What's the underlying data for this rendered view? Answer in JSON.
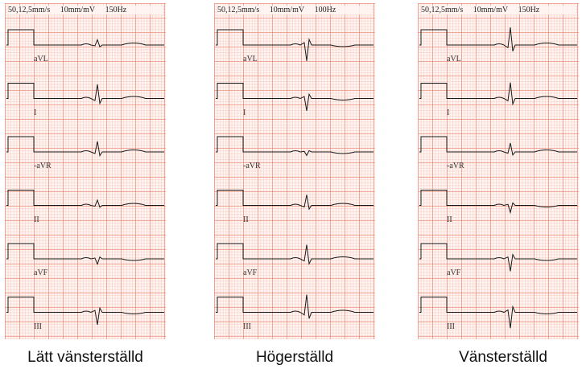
{
  "leads": [
    "aVL",
    "I",
    "-aVR",
    "II",
    "aVF",
    "III"
  ],
  "panels": [
    {
      "id": "latt",
      "header": {
        "speed": "50,12,5mm/s",
        "gain": "10mm/mV",
        "filter": "150Hz"
      },
      "caption": "Lätt vänsterställd",
      "amplitudes": {
        "aVL": 0.3,
        "I": 0.8,
        "-aVR": 0.6,
        "II": 0.3,
        "aVF": -0.3,
        "III": -0.7
      }
    },
    {
      "id": "hoger",
      "header": {
        "speed": "50,12,5mm/s",
        "gain": "10mm/mV",
        "filter": "100Hz"
      },
      "caption": "Högerställd",
      "amplitudes": {
        "aVL": -0.9,
        "I": -0.7,
        "-aVR": -0.2,
        "II": 0.6,
        "aVF": 0.8,
        "III": 1.0
      }
    },
    {
      "id": "vanster",
      "header": {
        "speed": "50,12,5mm/s",
        "gain": "10mm/mV",
        "filter": "150Hz"
      },
      "caption": "Vänsterställd",
      "amplitudes": {
        "aVL": 1.0,
        "I": 0.9,
        "-aVR": 0.5,
        "II": -0.4,
        "aVF": -0.7,
        "III": -0.9
      }
    }
  ]
}
